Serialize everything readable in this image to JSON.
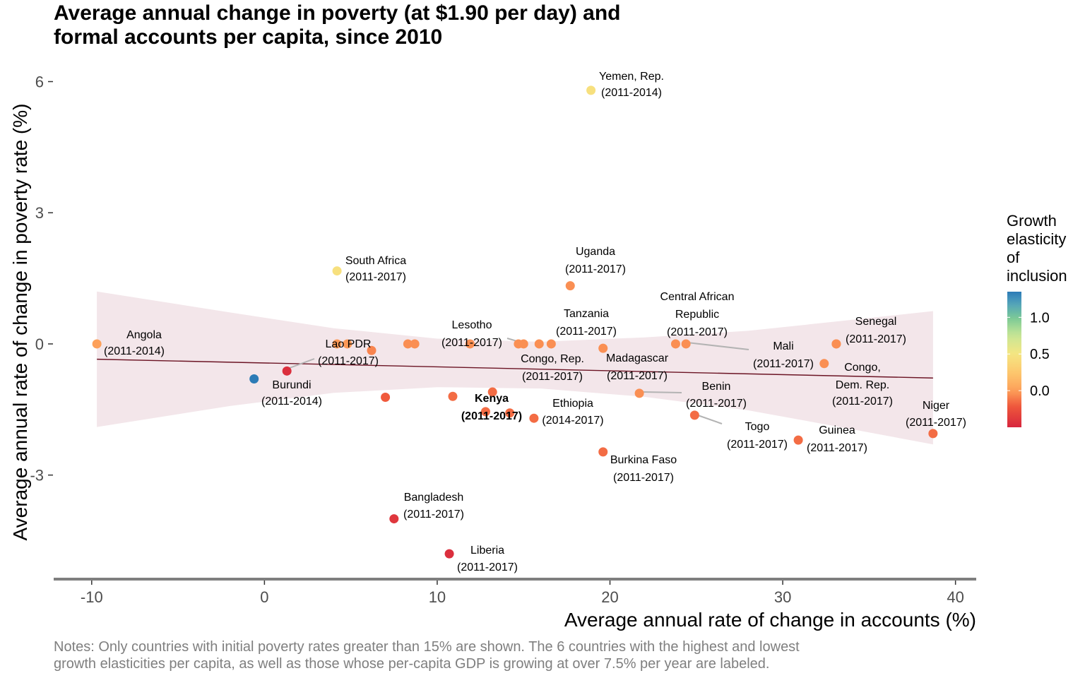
{
  "title": {
    "line1": "Average annual change in poverty (at $1.90 per day) and",
    "line2": "formal accounts per capita, since 2010"
  },
  "notes": {
    "line1": "Notes: Only countries with initial poverty rates greater than 15% are shown. The 6 countries with the highest and lowest",
    "line2": "growth elasticities per capita, as well as those whose per-capita GDP is growing at over 7.5% per year are labeled."
  },
  "colors": {
    "band": "#f3e6ea",
    "trend": "#6b1424",
    "axis_line": "#7f7f7f",
    "leader": "#b3b3b3",
    "scale": [
      "#d7263d",
      "#f46d43",
      "#fdae61",
      "#fee08b",
      "#ffffbf",
      "#e6f598",
      "#abdda4",
      "#66c2a5",
      "#3288bd",
      "#2c7bb6"
    ]
  },
  "chart_data": {
    "type": "scatter",
    "title": "Average annual change in poverty (at $1.90 per day) and formal accounts per capita, since 2010",
    "xlabel": "Average annual rate of change in accounts (%)",
    "ylabel": "Average annual rate of change in poverty rate (%)",
    "xlim": [
      -12.2,
      41.2
    ],
    "ylim": [
      -5.38,
      6.38
    ],
    "x_ticks": [
      -10,
      0,
      10,
      20,
      30,
      40
    ],
    "x_tick_labels": [
      "-10",
      "0",
      "10",
      "20",
      "30",
      "40"
    ],
    "y_ticks": [
      6,
      3,
      0,
      -3
    ],
    "y_tick_labels": [
      "6",
      "3",
      "0",
      "-3"
    ],
    "grid": false,
    "legend": {
      "title_lines": [
        "Growth",
        "elasticity",
        "of",
        "inclusion"
      ],
      "position": "right",
      "range": [
        -0.5,
        1.35
      ],
      "ticks": [
        1.0,
        0.5,
        0.0
      ],
      "tick_labels": [
        "1.0",
        "0.5",
        "0.0"
      ]
    },
    "trend": {
      "x": [
        -9.7,
        38.7
      ],
      "y": [
        -0.35,
        -0.78
      ]
    },
    "band": {
      "x": [
        -9.7,
        -2,
        4,
        10,
        16,
        22,
        28,
        34,
        38.7
      ],
      "upper": [
        1.2,
        0.72,
        0.36,
        0.12,
        0.05,
        0.15,
        0.3,
        0.55,
        0.75
      ],
      "lower": [
        -1.9,
        -1.42,
        -1.12,
        -0.99,
        -1.02,
        -1.21,
        -1.52,
        -1.95,
        -2.3
      ]
    },
    "points": [
      {
        "x": -9.7,
        "y": 0.0,
        "e": 0.0,
        "label": "Angola",
        "period": "(2011-2014)"
      },
      {
        "x": -0.6,
        "y": -0.8,
        "e": 1.35
      },
      {
        "x": 1.3,
        "y": -0.62,
        "e": -0.45,
        "label": "Burundi",
        "period": "(2011-2014)"
      },
      {
        "x": 4.2,
        "y": 1.67,
        "e": 0.45,
        "label": "South Africa",
        "period": "(2011-2017)"
      },
      {
        "x": 4.2,
        "y": 0.0,
        "e": -0.02
      },
      {
        "x": 4.8,
        "y": 0.0,
        "e": -0.02,
        "label": "Lao PDR",
        "period": "(2011-2017)"
      },
      {
        "x": 6.2,
        "y": -0.15,
        "e": -0.08
      },
      {
        "x": 7.0,
        "y": -1.22,
        "e": -0.2
      },
      {
        "x": 7.5,
        "y": -4.0,
        "e": -0.4,
        "label": "Bangladesh",
        "period": "(2011-2017)"
      },
      {
        "x": 8.3,
        "y": 0.0,
        "e": -0.05
      },
      {
        "x": 8.7,
        "y": 0.0,
        "e": -0.05
      },
      {
        "x": 10.7,
        "y": -4.8,
        "e": -0.45,
        "label": "Liberia",
        "period": "(2011-2017)"
      },
      {
        "x": 10.9,
        "y": -1.2,
        "e": -0.15
      },
      {
        "x": 11.9,
        "y": 0.0,
        "e": -0.05,
        "label": "Lesotho",
        "period": "(2011-2017)"
      },
      {
        "x": 12.8,
        "y": -1.55,
        "e": -0.15,
        "label": "Kenya",
        "period": "(2011-2017)",
        "bold": true
      },
      {
        "x": 13.2,
        "y": -1.1,
        "e": -0.15
      },
      {
        "x": 14.2,
        "y": -1.58,
        "e": -0.15
      },
      {
        "x": 14.7,
        "y": 0.0,
        "e": -0.05
      },
      {
        "x": 15.0,
        "y": 0.0,
        "e": -0.05
      },
      {
        "x": 15.6,
        "y": -1.7,
        "e": -0.15,
        "label": "Ethiopia",
        "period": "(2014-2017)"
      },
      {
        "x": 15.9,
        "y": 0.0,
        "e": -0.05,
        "label": "Congo, Rep.",
        "period": "(2011-2017)"
      },
      {
        "x": 16.6,
        "y": 0.0,
        "e": -0.05
      },
      {
        "x": 17.7,
        "y": 1.33,
        "e": -0.05,
        "label": "Uganda",
        "period": "(2011-2017)"
      },
      {
        "x": 18.9,
        "y": 5.8,
        "e": 0.45,
        "label": "Yemen, Rep.",
        "period": "(2011-2014)"
      },
      {
        "x": 19.6,
        "y": -0.1,
        "e": -0.05,
        "label": "Tanzania",
        "period": "(2011-2017)"
      },
      {
        "x": 19.6,
        "y": -2.47,
        "e": -0.15,
        "label": "Burkina Faso",
        "period": "(2011-2017)"
      },
      {
        "x": 21.7,
        "y": -1.13,
        "e": -0.05,
        "label": "Benin",
        "period": "(2011-2017)"
      },
      {
        "x": 23.8,
        "y": 0.0,
        "e": -0.05,
        "label": "Madagascar",
        "period": "(2011-2017)"
      },
      {
        "x": 24.4,
        "y": 0.0,
        "e": -0.05,
        "label": "Central African Republic",
        "period": "(2011-2017)"
      },
      {
        "x": 24.9,
        "y": -1.63,
        "e": -0.15,
        "label": "Togo",
        "period": "(2011-2017)"
      },
      {
        "x": 30.9,
        "y": -2.2,
        "e": -0.15,
        "label": "Guinea",
        "period": "(2011-2017)"
      },
      {
        "x": 32.4,
        "y": -0.45,
        "e": -0.05,
        "label": "Congo, Dem. Rep.",
        "period": "(2011-2017)"
      },
      {
        "x": 33.1,
        "y": 0.0,
        "e": -0.05,
        "label": "Mali",
        "period": "(2011-2017)"
      },
      {
        "x": 33.1,
        "y": 0.0,
        "e": -0.05,
        "label": "Senegal",
        "period": "(2011-2017)"
      },
      {
        "x": 38.7,
        "y": -2.05,
        "e": -0.15,
        "label": "Niger",
        "period": "(2011-2017)"
      }
    ]
  }
}
